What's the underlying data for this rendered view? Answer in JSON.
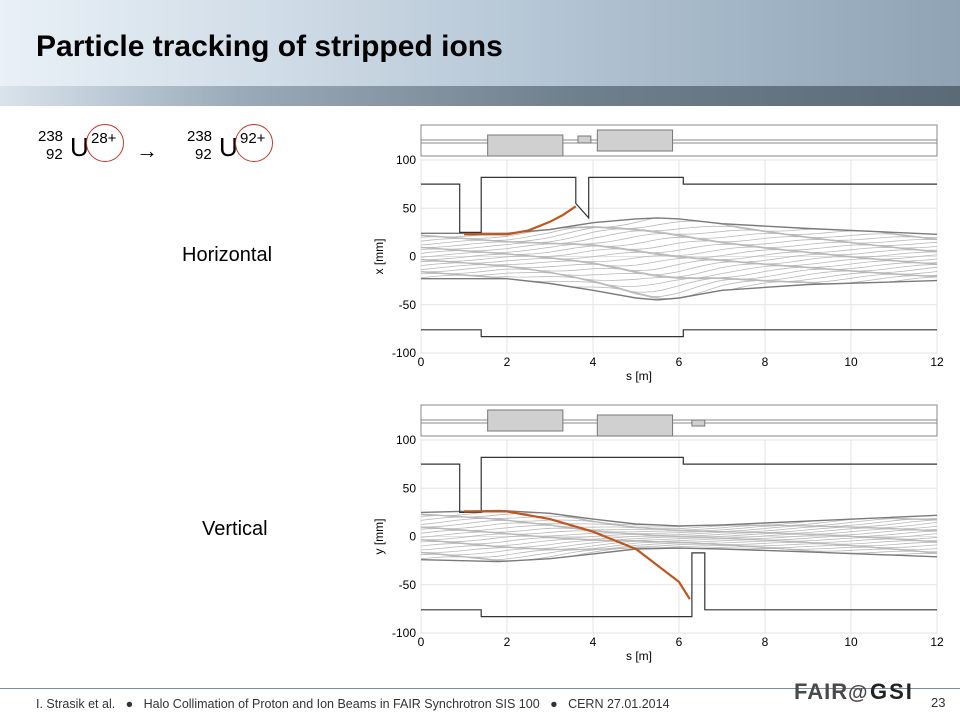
{
  "title": "Particle tracking of stripped ions",
  "ion_before": {
    "mass": "238",
    "z": "92",
    "symbol": "U",
    "charge": "28+"
  },
  "arrow": "→",
  "ion_after": {
    "mass": "238",
    "z": "92",
    "symbol": "U",
    "charge": "92+"
  },
  "labels": {
    "horizontal": "Horizontal",
    "vertical": "Vertical"
  },
  "footer": {
    "author": "I. Strasik et al.",
    "bullet": "●",
    "talk": "Halo Collimation of Proton and Ion Beams in FAIR Synchrotron SIS 100",
    "event": "CERN 27.01.2014",
    "page": "23"
  },
  "logo": {
    "text": "FAIR@GSI"
  },
  "colors": {
    "stripped_ion": "#c0561c",
    "beam": "#7a7a7a",
    "aperture": "#333333",
    "magnet": "#d0d0d0"
  },
  "chart_data": [
    {
      "type": "line",
      "xlabel": "s [m]",
      "ylabel": "x [mm]",
      "xlim": [
        0,
        12
      ],
      "ylim": [
        -100,
        100
      ],
      "xticks": [
        0,
        2,
        4,
        6,
        8,
        10,
        12
      ],
      "yticks": [
        100,
        50,
        0,
        -50,
        -100
      ],
      "grid": true,
      "aperture_upper": {
        "s": [
          0,
          0.9,
          0.9,
          1.4,
          1.4,
          3.6,
          3.6,
          3.9,
          3.9,
          6.1,
          6.1,
          12
        ],
        "v": [
          75,
          75,
          25,
          25,
          82,
          82,
          55,
          40,
          82,
          82,
          75,
          75
        ]
      },
      "aperture_lower": {
        "s": [
          0,
          1.4,
          1.4,
          6.1,
          6.1,
          12
        ],
        "v": [
          -76,
          -76,
          -83,
          -83,
          -76,
          -76
        ]
      },
      "beam_envelope": {
        "s": [
          0,
          2,
          3,
          4,
          5,
          5.5,
          6,
          7,
          9,
          12
        ],
        "upper": [
          24,
          24,
          28,
          35,
          39,
          40,
          39,
          34,
          29,
          23
        ],
        "lower": [
          -23,
          -23,
          -28,
          -35,
          -43,
          -45,
          -43,
          -35,
          -29,
          -25
        ]
      },
      "stripped_ion": {
        "s": [
          1.0,
          2.0,
          2.5,
          3.0,
          3.3,
          3.6
        ],
        "v": [
          23,
          23,
          27,
          36,
          43,
          52
        ]
      }
    },
    {
      "type": "line",
      "xlabel": "s [m]",
      "ylabel": "y [mm]",
      "xlim": [
        0,
        12
      ],
      "ylim": [
        -100,
        100
      ],
      "xticks": [
        0,
        2,
        4,
        6,
        8,
        10,
        12
      ],
      "yticks": [
        100,
        50,
        0,
        -50,
        -100
      ],
      "grid": true,
      "aperture_upper": {
        "s": [
          0,
          0.9,
          0.9,
          1.4,
          1.4,
          6.1,
          6.1,
          12
        ],
        "v": [
          75,
          75,
          25,
          25,
          82,
          82,
          75,
          75
        ]
      },
      "aperture_lower": {
        "s": [
          0,
          1.4,
          1.4,
          6.3,
          6.3,
          6.6,
          6.6,
          12
        ],
        "v": [
          -76,
          -76,
          -83,
          -83,
          -17,
          -17,
          -76,
          -76
        ]
      },
      "beam_envelope": {
        "s": [
          0,
          1.8,
          3,
          4,
          5,
          6,
          7,
          9,
          12
        ],
        "upper": [
          25,
          27,
          24,
          18,
          13,
          11,
          12,
          16,
          22
        ],
        "lower": [
          -24,
          -26,
          -23,
          -18,
          -13,
          -12,
          -13,
          -16,
          -21
        ]
      },
      "stripped_ion": {
        "s": [
          1.0,
          2.0,
          3.0,
          4.0,
          5.0,
          6.0,
          6.25
        ],
        "v": [
          26,
          26,
          18,
          5,
          -13,
          -47,
          -65
        ]
      }
    }
  ]
}
